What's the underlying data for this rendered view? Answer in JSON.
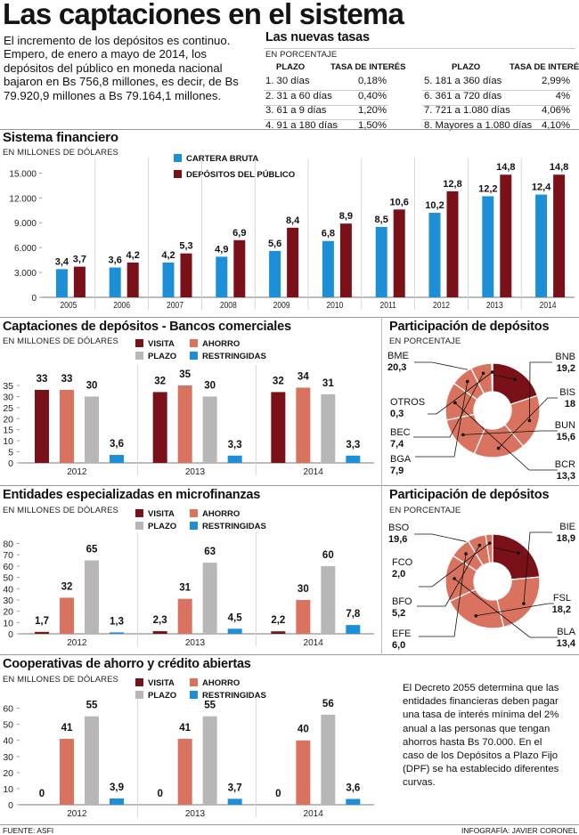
{
  "title": "Las captaciones en el sistema",
  "intro": "El incremento de los depósitos es continuo. Empero, de enero a mayo de 2014, los depósitos del público en moneda nacional bajaron en Bs 756,8 millones, es decir, de Bs 79.920,9 millones a Bs 79.164,1 millones.",
  "colors": {
    "dark_red": "#7a1018",
    "salmon": "#d9735f",
    "gray": "#b8b6b6",
    "blue": "#1d8fd6"
  },
  "rates": {
    "title": "Las nuevas tasas",
    "unit": "EN PORCENTAJE",
    "col_plazo": "PLAZO",
    "col_tasa": "TASA DE INTERÉS",
    "left": [
      {
        "plazo": "1. 30 días",
        "tasa": "0,18%"
      },
      {
        "plazo": "2. 31 a 60 días",
        "tasa": "0,40%"
      },
      {
        "plazo": "3. 61 a 9 días",
        "tasa": "1,20%"
      },
      {
        "plazo": "4. 91 a 180 días",
        "tasa": "1,50%"
      }
    ],
    "right": [
      {
        "plazo": "5. 181 a 360 días",
        "tasa": "2,99%"
      },
      {
        "plazo": "6. 361 a 720 días",
        "tasa": "4%"
      },
      {
        "plazo": "7. 721 a 1.080 días",
        "tasa": "4,06%"
      },
      {
        "plazo": "8. Mayores a 1.080 días",
        "tasa": "4,10%"
      }
    ]
  },
  "labels": {
    "visita": "VISITA",
    "ahorro": "AHORRO",
    "plazo": "PLAZO",
    "restringidas": "RESTRINGIDAS",
    "cartera": "CARTERA BRUTA",
    "depositos": "DEPÓSITOS DEL PÚBLICO",
    "millones": "EN MILLONES DE DÓLARES",
    "porcentaje": "EN PORCENTAJE"
  },
  "footer": {
    "source": "FUENTE: ASFI",
    "credit": "INFOGRAFÍA: JAVIER CORONEL"
  },
  "note": "El Decreto 2055 determina que las entidades financieras deben pagar una tasa de interés mínima del 2% anual a las personas que tengan ahorros hasta Bs 70.000. En el caso de los Depósitos a Plazo Fijo (DPF) se ha establecido diferentes curvas.",
  "chart_data": [
    {
      "id": "sistema",
      "type": "bar",
      "title": "Sistema financiero",
      "unit": "EN MILLONES DE DÓLARES",
      "categories": [
        "2005",
        "2006",
        "2007",
        "2008",
        "2009",
        "2010",
        "2011",
        "2012",
        "2013",
        "2014"
      ],
      "series": [
        {
          "name": "CARTERA BRUTA",
          "values": [
            3.4,
            3.6,
            4.2,
            4.9,
            5.6,
            6.8,
            8.5,
            10.2,
            12.2,
            12.4
          ],
          "labels": [
            "3,4",
            "3,6",
            "4,2",
            "4,9",
            "5,6",
            "6,8",
            "8,5",
            "10,2",
            "12,2",
            "12,4"
          ]
        },
        {
          "name": "DEPÓSITOS DEL PÚBLICO",
          "values": [
            3.7,
            4.2,
            5.3,
            6.9,
            8.4,
            8.9,
            10.6,
            12.8,
            14.8,
            14.8
          ],
          "labels": [
            "3,7",
            "4,2",
            "5,3",
            "6,9",
            "8,4",
            "8,9",
            "10,6",
            "12,8",
            "14,8",
            "14,8"
          ]
        }
      ],
      "yticks": [
        "0",
        "3.000",
        "6.000",
        "9.000",
        "12.000",
        "15.000"
      ],
      "ylim": [
        0,
        15.9
      ]
    },
    {
      "id": "bancos",
      "type": "bar",
      "title": "Captaciones de depósitos  - Bancos comerciales",
      "unit": "EN MILLONES DE DÓLARES",
      "categories": [
        "2012",
        "2013",
        "2014"
      ],
      "series": [
        {
          "name": "VISITA",
          "values": [
            33,
            32,
            32
          ],
          "labels": [
            "33",
            "32",
            "32"
          ]
        },
        {
          "name": "AHORRO",
          "values": [
            33,
            35,
            34
          ],
          "labels": [
            "33",
            "35",
            "34"
          ]
        },
        {
          "name": "PLAZO",
          "values": [
            30,
            30,
            31
          ],
          "labels": [
            "30",
            "30",
            "31"
          ]
        },
        {
          "name": "RESTRINGIDAS",
          "values": [
            3.6,
            3.3,
            3.3
          ],
          "labels": [
            "3,6",
            "3,3",
            "3,3"
          ]
        }
      ],
      "yticks": [
        "0",
        "5",
        "10",
        "15",
        "20",
        "25",
        "30",
        "35"
      ],
      "ylim": [
        0,
        37
      ]
    },
    {
      "id": "micro",
      "type": "bar",
      "title": "Entidades especializadas en microfinanzas",
      "unit": "EN MILLONES DE DÓLARES",
      "categories": [
        "2012",
        "2013",
        "2014"
      ],
      "series": [
        {
          "name": "VISITA",
          "values": [
            1.7,
            2.3,
            2.2
          ],
          "labels": [
            "1,7",
            "2,3",
            "2,2"
          ]
        },
        {
          "name": "AHORRO",
          "values": [
            32,
            31,
            30
          ],
          "labels": [
            "32",
            "31",
            "30"
          ]
        },
        {
          "name": "PLAZO",
          "values": [
            65,
            63,
            60
          ],
          "labels": [
            "65",
            "63",
            "60"
          ]
        },
        {
          "name": "RESTRINGIDAS",
          "values": [
            1.3,
            4.5,
            7.8
          ],
          "labels": [
            "1,3",
            "4,5",
            "7,8"
          ]
        }
      ],
      "yticks": [
        "0",
        "10",
        "20",
        "30",
        "40",
        "50",
        "60",
        "70",
        "80"
      ],
      "ylim": [
        0,
        82
      ]
    },
    {
      "id": "coop",
      "type": "bar",
      "title": "Cooperativas de ahorro y crédito abiertas",
      "unit": "EN MILLONES DE DÓLARES",
      "categories": [
        "2012",
        "2013",
        "2014"
      ],
      "series": [
        {
          "name": "VISITA",
          "values": [
            0,
            0,
            0
          ],
          "labels": [
            "0",
            "0",
            "0"
          ]
        },
        {
          "name": "AHORRO",
          "values": [
            41,
            41,
            40
          ],
          "labels": [
            "41",
            "41",
            "40"
          ]
        },
        {
          "name": "PLAZO",
          "values": [
            55,
            55,
            56
          ],
          "labels": [
            "55",
            "55",
            "56"
          ]
        },
        {
          "name": "RESTRINGIDAS",
          "values": [
            3.9,
            3.7,
            3.6
          ],
          "labels": [
            "3,9",
            "3,7",
            "3,6"
          ]
        }
      ],
      "yticks": [
        "0",
        "10",
        "20",
        "30",
        "40",
        "50",
        "60"
      ],
      "ylim": [
        0,
        62
      ]
    },
    {
      "id": "pie1",
      "type": "pie",
      "title": "Participación de depósitos",
      "unit": "EN PORCENTAJE",
      "slices": [
        {
          "label": "BME",
          "value": 20.3,
          "text": "20,3",
          "color": "#7a1018"
        },
        {
          "label": "BNB",
          "value": 19.2,
          "text": "19,2",
          "color": "#d9735f"
        },
        {
          "label": "BIS",
          "value": 18,
          "text": "18",
          "color": "#d9735f"
        },
        {
          "label": "BUN",
          "value": 15.6,
          "text": "15,6",
          "color": "#d9735f"
        },
        {
          "label": "BCR",
          "value": 13.3,
          "text": "13,3",
          "color": "#d9735f"
        },
        {
          "label": "BGA",
          "value": 7.9,
          "text": "7,9",
          "color": "#d9735f"
        },
        {
          "label": "BEC",
          "value": 7.4,
          "text": "7,4",
          "color": "#d9735f"
        },
        {
          "label": "OTROS",
          "value": 0.3,
          "text": "0,3",
          "color": "#d9735f"
        }
      ]
    },
    {
      "id": "pie2",
      "type": "pie",
      "title": "Participación de depósitos",
      "unit": "EN PORCENTAJE",
      "slices": [
        {
          "label": "BSO",
          "value": 19.6,
          "text": "19,6",
          "color": "#7a1018"
        },
        {
          "label": "BIE",
          "value": 18.9,
          "text": "18,9",
          "color": "#d9735f"
        },
        {
          "label": "FSL",
          "value": 18.2,
          "text": "18,2",
          "color": "#d9735f"
        },
        {
          "label": "BLA",
          "value": 13.4,
          "text": "13,4",
          "color": "#d9735f"
        },
        {
          "label": "EFE",
          "value": 6.0,
          "text": "6,0",
          "color": "#d9735f"
        },
        {
          "label": "BFO",
          "value": 5.2,
          "text": "5,2",
          "color": "#d9735f"
        },
        {
          "label": "FCO",
          "value": 2.0,
          "text": "2,0",
          "color": "#d9735f"
        }
      ]
    }
  ]
}
